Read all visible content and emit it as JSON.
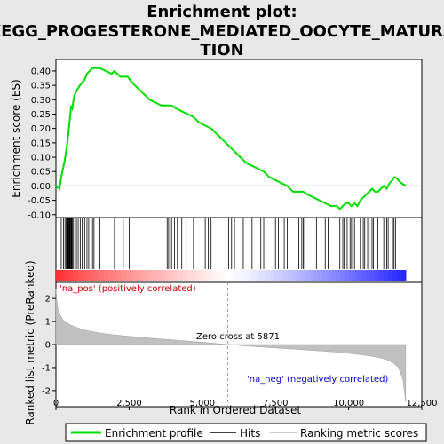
{
  "chart_data": {
    "type": "line",
    "title_line1": "Enrichment plot:",
    "title_line2": "KEGG_PROGESTERONE_MEDIATED_OOCYTE_MATURA",
    "title_line3": "TION",
    "top_panel": {
      "ylabel": "Enrichment score (ES)",
      "ylim": [
        -0.11,
        0.44
      ],
      "yticks": [
        -0.1,
        -0.05,
        0.0,
        0.05,
        0.1,
        0.15,
        0.2,
        0.25,
        0.3,
        0.35,
        0.4
      ],
      "ytick_labels": [
        "-0.10",
        "-0.05",
        "0.00",
        "0.05",
        "0.10",
        "0.15",
        "0.20",
        "0.25",
        "0.30",
        "0.35",
        "0.40"
      ],
      "series_name": "Enrichment profile",
      "color": "#00dd00",
      "x": [
        0,
        120,
        180,
        240,
        300,
        350,
        400,
        430,
        460,
        490,
        520,
        560,
        600,
        650,
        700,
        760,
        820,
        900,
        980,
        1060,
        1150,
        1250,
        1350,
        1500,
        1700,
        1900,
        2000,
        2200,
        2300,
        2450,
        2600,
        2800,
        3000,
        3200,
        3400,
        3600,
        3800,
        3850,
        3950,
        4100,
        4300,
        4500,
        4700,
        4900,
        5100,
        5300,
        5500,
        5700,
        5900,
        6100,
        6300,
        6500,
        6700,
        6900,
        7100,
        7300,
        7500,
        7700,
        7900,
        8100,
        8300,
        8450,
        8600,
        8800,
        9000,
        9200,
        9400,
        9600,
        9700,
        9800,
        9900,
        10000,
        10100,
        10200,
        10300,
        10400,
        10500,
        10600,
        10700,
        10800,
        10900,
        11000,
        11100,
        11200,
        11300,
        11400,
        11500,
        11550,
        11600,
        11700,
        11800,
        11950
      ],
      "y": [
        0.0,
        -0.01,
        0.03,
        0.06,
        0.09,
        0.12,
        0.16,
        0.19,
        0.22,
        0.25,
        0.28,
        0.27,
        0.3,
        0.32,
        0.33,
        0.34,
        0.35,
        0.36,
        0.37,
        0.39,
        0.4,
        0.41,
        0.41,
        0.41,
        0.4,
        0.39,
        0.4,
        0.38,
        0.38,
        0.38,
        0.36,
        0.34,
        0.32,
        0.3,
        0.29,
        0.28,
        0.28,
        0.28,
        0.28,
        0.27,
        0.26,
        0.25,
        0.24,
        0.22,
        0.21,
        0.2,
        0.18,
        0.16,
        0.14,
        0.12,
        0.1,
        0.08,
        0.07,
        0.06,
        0.05,
        0.03,
        0.02,
        0.01,
        0.0,
        -0.02,
        -0.02,
        -0.02,
        -0.03,
        -0.04,
        -0.05,
        -0.06,
        -0.07,
        -0.07,
        -0.08,
        -0.07,
        -0.06,
        -0.06,
        -0.07,
        -0.06,
        -0.07,
        -0.05,
        -0.04,
        -0.03,
        -0.02,
        -0.01,
        -0.02,
        -0.02,
        -0.01,
        0.0,
        -0.01,
        0.01,
        0.02,
        0.03,
        0.03,
        0.02,
        0.01,
        0.0
      ]
    },
    "hits": {
      "series_name": "Hits",
      "positions": [
        180,
        260,
        310,
        350,
        380,
        400,
        420,
        440,
        460,
        480,
        500,
        520,
        540,
        560,
        600,
        650,
        700,
        760,
        830,
        900,
        980,
        1060,
        1120,
        1200,
        1250,
        1300,
        1500,
        2000,
        2300,
        2500,
        3800,
        3850,
        3950,
        4050,
        4150,
        4300,
        4450,
        4700,
        5100,
        5200,
        5300,
        5900,
        6000,
        6100,
        6400,
        6700,
        7000,
        7100,
        7500,
        7600,
        7800,
        7900,
        8300,
        8400,
        8450,
        8500,
        8900,
        9200,
        9300,
        9600,
        9700,
        9800,
        9850,
        9950,
        10050,
        10100,
        10200,
        10400,
        10500,
        10550,
        10650,
        10700,
        10800,
        10850,
        11000,
        11200,
        11300,
        11350,
        11500,
        11550,
        11600
      ]
    },
    "ranking": {
      "ylabel": "Ranked list metric (PreRanked)",
      "ylim": [
        -2.7,
        2.7
      ],
      "yticks": [
        -2,
        -1,
        0,
        1,
        2
      ],
      "ytick_labels": [
        "-2",
        "-1",
        "0",
        "1",
        "2"
      ],
      "series_name": "Ranking metric scores",
      "x": [
        0,
        50,
        100,
        200,
        300,
        500,
        700,
        1000,
        1500,
        2000,
        3000,
        4000,
        5000,
        5871,
        6500,
        7500,
        8500,
        9500,
        10000,
        10500,
        11000,
        11300,
        11500,
        11700,
        11850,
        11950
      ],
      "y": [
        2.4,
        1.7,
        1.4,
        1.15,
        1.0,
        0.85,
        0.75,
        0.62,
        0.5,
        0.42,
        0.3,
        0.2,
        0.1,
        0.0,
        -0.06,
        -0.15,
        -0.23,
        -0.32,
        -0.38,
        -0.45,
        -0.55,
        -0.65,
        -0.78,
        -1.0,
        -1.5,
        -2.5
      ],
      "zero_cross_label": "Zero cross at 5871",
      "zero_cross": 5871,
      "pos_label": "'na_pos' (positively correlated)",
      "neg_label": "'na_neg' (negatively correlated)"
    },
    "xlabel": "Rank in Ordered Dataset",
    "xlim": [
      0,
      12500
    ],
    "xticks": [
      0,
      2500,
      5000,
      7500,
      10000,
      12500
    ],
    "xtick_labels": [
      "0",
      "2,500",
      "5,000",
      "7,500",
      "10,000",
      "12,500"
    ],
    "total_rank": 11950
  },
  "legend": {
    "items": [
      {
        "label": "Enrichment profile",
        "color": "#00dd00"
      },
      {
        "label": "Hits",
        "color": "#000000"
      },
      {
        "label": "Ranking metric scores",
        "color": "#bbbbbb"
      }
    ]
  }
}
